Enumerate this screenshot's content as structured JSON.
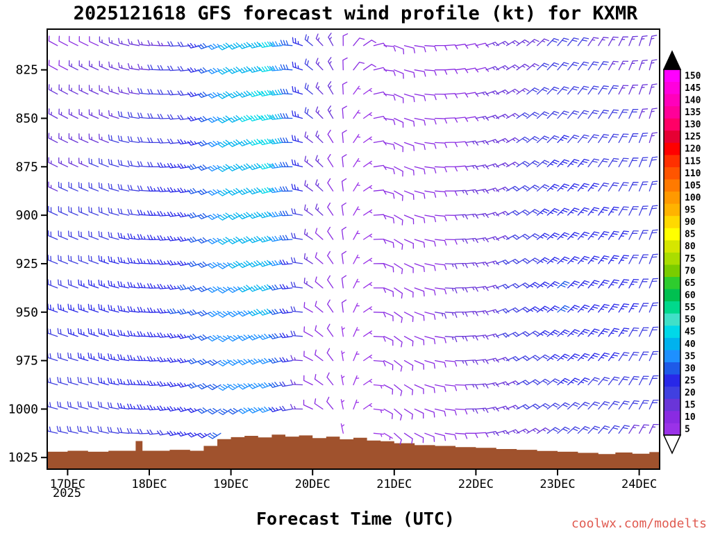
{
  "title": "2025121618 GFS forecast wind profile (kt) for KXMR",
  "xlabel": "Forecast Time (UTC)",
  "watermark": "coolwx.com/modelts",
  "colors": {
    "watermark": "#e05a50",
    "axis": "#000000",
    "background": "#ffffff"
  },
  "chart_data": {
    "type": "wind-barb-profile",
    "title": "2025121618 GFS forecast wind profile (kt) for KXMR",
    "x_axis": {
      "label": "Forecast Time (UTC)",
      "year": "2025",
      "tick_labels": [
        "17DEC",
        "18DEC",
        "19DEC",
        "20DEC",
        "21DEC",
        "22DEC",
        "23DEC",
        "24DEC"
      ],
      "tick_hours": [
        0,
        24,
        48,
        72,
        96,
        120,
        144,
        168
      ],
      "range_hours": [
        -6,
        174
      ]
    },
    "y_axis": {
      "units": "hPa",
      "tick_labels": [
        "825",
        "850",
        "875",
        "900",
        "925",
        "950",
        "975",
        "1000",
        "1025"
      ],
      "tick_values": [
        825,
        850,
        875,
        900,
        925,
        950,
        975,
        1000,
        1025
      ],
      "range": [
        804,
        1031
      ]
    },
    "colorbar": {
      "units": "kt",
      "values": [
        5,
        10,
        15,
        20,
        25,
        30,
        35,
        40,
        45,
        50,
        55,
        60,
        65,
        70,
        75,
        80,
        85,
        90,
        95,
        100,
        105,
        110,
        115,
        120,
        125,
        130,
        135,
        140,
        145,
        150
      ],
      "colors": [
        "#9a32e8",
        "#8a2be2",
        "#6a35d8",
        "#4040e0",
        "#2828e8",
        "#1e5ae8",
        "#1e90ff",
        "#00b2ee",
        "#00d8e8",
        "#40e0c8",
        "#00d98c",
        "#00c050",
        "#2ecc2e",
        "#7acc00",
        "#aadd00",
        "#d6e600",
        "#ffff00",
        "#ffd900",
        "#ffb300",
        "#ff9900",
        "#ff7a00",
        "#ff5500",
        "#ff3000",
        "#ff0000",
        "#e60033",
        "#ff0066",
        "#ff0099",
        "#ff00bb",
        "#ff00dd",
        "#ff00ff"
      ],
      "over_color": "#000000",
      "under_color": "#ffffff"
    },
    "barb_grid": {
      "time_step_hours": 3,
      "pressure_top": 812.5,
      "pressure_step_hpa": 12.5,
      "rows": 17
    },
    "wind_field": {
      "comment": "Control grid estimated from plot; speeds kt, meteorological direction (deg from)",
      "pressures": [
        804,
        850,
        900,
        950,
        1000,
        1031
      ],
      "times_hours": [
        -6,
        12,
        36,
        48,
        60,
        72,
        84,
        96,
        120,
        144,
        162,
        174
      ],
      "speed_kt": [
        [
          10,
          14,
          18,
          22,
          20,
          16
        ],
        [
          12,
          16,
          20,
          25,
          22,
          18
        ],
        [
          18,
          22,
          26,
          28,
          25,
          20
        ],
        [
          38,
          40,
          38,
          36,
          32,
          26
        ],
        [
          42,
          45,
          42,
          38,
          33,
          27
        ],
        [
          20,
          18,
          15,
          12,
          10,
          8
        ],
        [
          8,
          7,
          6,
          6,
          5,
          5
        ],
        [
          8,
          8,
          9,
          10,
          9,
          7
        ],
        [
          12,
          13,
          14,
          15,
          13,
          10
        ],
        [
          18,
          22,
          26,
          28,
          22,
          15
        ],
        [
          15,
          18,
          22,
          24,
          20,
          14
        ],
        [
          13,
          16,
          18,
          20,
          17,
          12
        ]
      ],
      "direction_deg": [
        [
          300,
          300,
          295,
          290,
          285,
          280
        ],
        [
          295,
          292,
          290,
          288,
          285,
          280
        ],
        [
          265,
          262,
          260,
          258,
          255,
          250
        ],
        [
          245,
          242,
          240,
          238,
          235,
          230
        ],
        [
          260,
          258,
          255,
          252,
          250,
          248
        ],
        [
          310,
          308,
          305,
          300,
          295,
          290
        ],
        [
          40,
          35,
          30,
          25,
          20,
          15
        ],
        [
          110,
          115,
          120,
          125,
          130,
          135
        ],
        [
          75,
          78,
          80,
          82,
          85,
          88
        ],
        [
          40,
          42,
          45,
          48,
          50,
          52
        ],
        [
          25,
          28,
          30,
          32,
          35,
          38
        ],
        [
          10,
          12,
          15,
          18,
          20,
          22
        ]
      ]
    },
    "terrain": {
      "color": "#a0522d",
      "points": [
        [
          -6,
          1022
        ],
        [
          0,
          1021.5
        ],
        [
          6,
          1022
        ],
        [
          12,
          1021.5
        ],
        [
          20,
          1016.5
        ],
        [
          22,
          1021.5
        ],
        [
          30,
          1021
        ],
        [
          36,
          1021.5
        ],
        [
          40,
          1019
        ],
        [
          44,
          1015.5
        ],
        [
          48,
          1014.5
        ],
        [
          52,
          1013.8
        ],
        [
          56,
          1014.6
        ],
        [
          60,
          1013.2
        ],
        [
          64,
          1014.2
        ],
        [
          68,
          1013.6
        ],
        [
          72,
          1015
        ],
        [
          76,
          1014.2
        ],
        [
          80,
          1015.6
        ],
        [
          84,
          1014.8
        ],
        [
          88,
          1016.2
        ],
        [
          92,
          1016.6
        ],
        [
          96,
          1017.6
        ],
        [
          102,
          1018.6
        ],
        [
          108,
          1019
        ],
        [
          114,
          1019.6
        ],
        [
          120,
          1020
        ],
        [
          126,
          1020.6
        ],
        [
          132,
          1021
        ],
        [
          138,
          1021.6
        ],
        [
          144,
          1022
        ],
        [
          150,
          1022.6
        ],
        [
          156,
          1023.2
        ],
        [
          161,
          1022.4
        ],
        [
          166,
          1023
        ],
        [
          171,
          1022.2
        ],
        [
          174,
          1022.6
        ]
      ]
    }
  }
}
